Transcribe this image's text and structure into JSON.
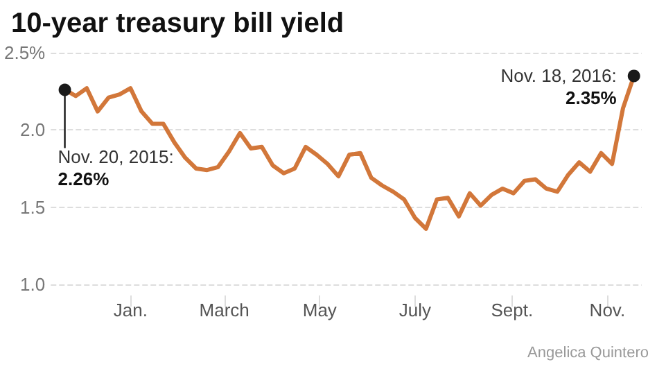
{
  "chart_data": {
    "type": "line",
    "title": "10-year treasury bill yield",
    "x": [
      "2015-11-20",
      "2015-11-27",
      "2015-12-04",
      "2015-12-11",
      "2015-12-18",
      "2015-12-25",
      "2016-01-01",
      "2016-01-08",
      "2016-01-15",
      "2016-01-22",
      "2016-01-29",
      "2016-02-05",
      "2016-02-12",
      "2016-02-19",
      "2016-02-26",
      "2016-03-04",
      "2016-03-11",
      "2016-03-18",
      "2016-03-25",
      "2016-04-01",
      "2016-04-08",
      "2016-04-15",
      "2016-04-22",
      "2016-04-29",
      "2016-05-06",
      "2016-05-13",
      "2016-05-20",
      "2016-05-27",
      "2016-06-03",
      "2016-06-10",
      "2016-06-17",
      "2016-06-24",
      "2016-07-01",
      "2016-07-08",
      "2016-07-15",
      "2016-07-22",
      "2016-07-29",
      "2016-08-05",
      "2016-08-12",
      "2016-08-19",
      "2016-08-26",
      "2016-09-02",
      "2016-09-09",
      "2016-09-16",
      "2016-09-23",
      "2016-09-30",
      "2016-10-07",
      "2016-10-14",
      "2016-10-21",
      "2016-10-28",
      "2016-11-04",
      "2016-11-11",
      "2016-11-18"
    ],
    "series": [
      {
        "color": "#d2773a",
        "values": [
          2.26,
          2.22,
          2.27,
          2.12,
          2.21,
          2.23,
          2.27,
          2.12,
          2.04,
          2.04,
          1.92,
          1.82,
          1.75,
          1.74,
          1.76,
          1.86,
          1.98,
          1.88,
          1.89,
          1.77,
          1.72,
          1.75,
          1.89,
          1.84,
          1.78,
          1.7,
          1.84,
          1.85,
          1.69,
          1.64,
          1.6,
          1.55,
          1.43,
          1.36,
          1.55,
          1.56,
          1.44,
          1.59,
          1.51,
          1.58,
          1.62,
          1.59,
          1.67,
          1.68,
          1.62,
          1.6,
          1.71,
          1.79,
          1.73,
          1.85,
          1.78,
          2.14,
          2.35
        ]
      }
    ],
    "xlim": [
      "2015-11-11",
      "2016-11-23"
    ],
    "xticks": [
      {
        "value": "2016-01-01",
        "label": "Jan."
      },
      {
        "value": "2016-03-01",
        "label": "March"
      },
      {
        "value": "2016-05-01",
        "label": "May"
      },
      {
        "value": "2016-07-01",
        "label": "July"
      },
      {
        "value": "2016-09-01",
        "label": "Sept."
      },
      {
        "value": "2016-11-01",
        "label": "Nov."
      }
    ],
    "ylim": [
      1,
      2.5
    ],
    "yticks": [
      {
        "value": 1,
        "label": "1.0"
      },
      {
        "value": 1.5,
        "label": "1.5"
      },
      {
        "value": 2,
        "label": "2.0"
      },
      {
        "value": 2.5,
        "label": "2.5%"
      }
    ],
    "grid": "y",
    "marker": "none",
    "line_style": "solid",
    "annotations": [
      {
        "text": "Nov. 18, 2016:\n2.35%",
        "x": "2016-11-18",
        "y": 2.35
      },
      "Nov. 20, 2015:\n2.26%",
      "Angelica Quintero"
    ]
  }
}
